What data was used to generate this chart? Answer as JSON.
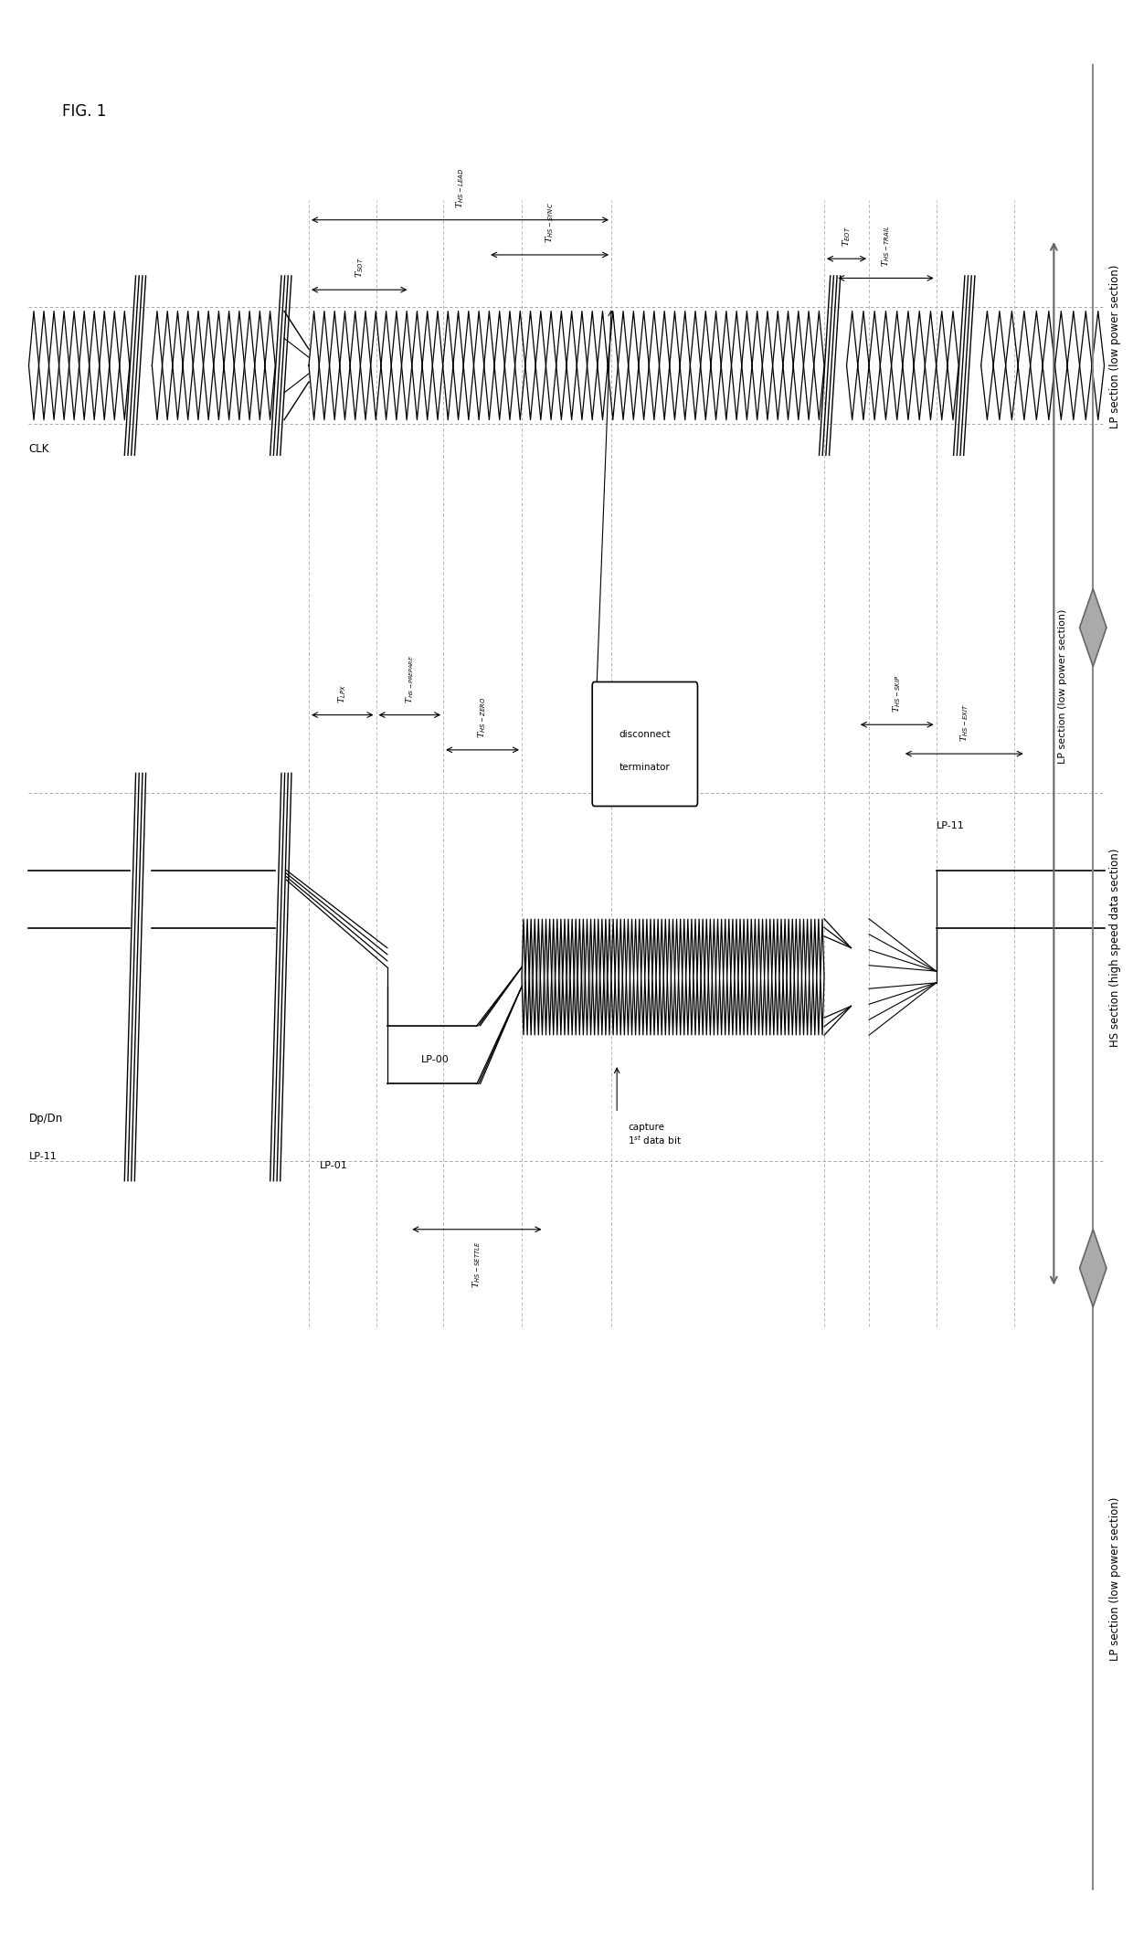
{
  "title": "FIG. 1",
  "background_color": "#ffffff",
  "fig_width": 12.4,
  "fig_height": 21.39,
  "clk_label": "CLK",
  "dp_dn_label": "Dp/Dn",
  "lp_11_label": "LP-11",
  "lp_01_label": "LP-01",
  "lp_00_label": "LP-00",
  "lp_11_right_label": "LP-11",
  "timing_labels": [
    "T_SOT",
    "T_LPX",
    "T_HS-PREPARE",
    "T_HS-ZERO",
    "T_HS-SYNC",
    "T_HS-LEAD",
    "T_EOT",
    "T_HS-TRAIL",
    "T_HS-SKIP",
    "T_HS-EXIT",
    "T_HS-SETTLE"
  ],
  "section_labels": [
    "LP section (low power section)",
    "HS section (high speed data section)",
    "LP section (low power section)"
  ],
  "box_label_line1": "disconnect",
  "box_label_line2": "terminator",
  "capture_label": "capture\n1st data bit",
  "lp_section_color": "#808080",
  "hs_section_color": "#808080",
  "line_color": "#000000",
  "dashed_color": "#888888",
  "box_bg": "#ffffff",
  "box_border": "#000000",
  "diamond_fill": "#aaaaaa"
}
